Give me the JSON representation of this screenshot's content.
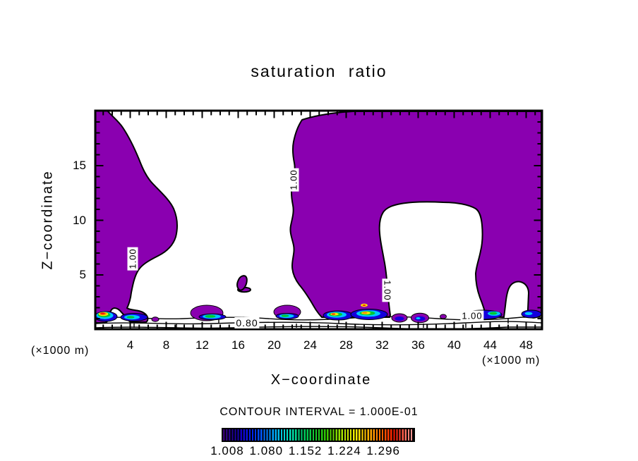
{
  "title": "saturation ratio",
  "axes": {
    "x": {
      "label": "X−coordinate",
      "units": "(×1000 m)",
      "ticks": [
        4,
        8,
        12,
        16,
        20,
        24,
        28,
        32,
        36,
        40,
        44,
        48
      ],
      "range": [
        0,
        50
      ]
    },
    "y": {
      "label": "Z−coordinate",
      "units": "(×1000 m)",
      "ticks": [
        5,
        10,
        15
      ],
      "range": [
        0,
        20
      ]
    }
  },
  "legend": {
    "contour_interval_text": "CONTOUR INTERVAL = 1.000E-01"
  },
  "colorbar": {
    "tick_labels": [
      "1.008",
      "1.080",
      "1.152",
      "1.224",
      "1.296"
    ],
    "n_stripes": 66,
    "gradient_stops": [
      [
        "#3A0070",
        0
      ],
      [
        "#22008C",
        4
      ],
      [
        "#1000C8",
        10
      ],
      [
        "#0028FF",
        16
      ],
      [
        "#00A0FF",
        26
      ],
      [
        "#00E0C8",
        34
      ],
      [
        "#00C850",
        44
      ],
      [
        "#30C800",
        54
      ],
      [
        "#A0E000",
        62
      ],
      [
        "#FFF000",
        70
      ],
      [
        "#FFA000",
        78
      ],
      [
        "#FF5000",
        85
      ],
      [
        "#FF1400",
        90
      ],
      [
        "#FF6450",
        95
      ],
      [
        "#FFA0A0",
        100
      ]
    ]
  },
  "contour_labels": {
    "left_vertical": "1.00",
    "top_vertical": "1.00",
    "mid_vertical": "1.00",
    "bottom_horizontal": "0.80",
    "right_horizontal": "1.00"
  },
  "colors": {
    "purple": "#8A00B0",
    "blue": "#1400DC",
    "cyan": "#00C8FF",
    "green": "#00C832",
    "yellow": "#FFE800",
    "orange": "#FF8C00",
    "red": "#FF1E00",
    "frame": "#000000"
  },
  "chart_data": {
    "type": "heatmap",
    "subtype": "filled-contour-plot",
    "title": "saturation ratio",
    "xlabel": "X−coordinate",
    "ylabel": "Z−coordinate",
    "x_units": "(×1000 m)",
    "y_units": "(×1000 m)",
    "xlim": [
      0,
      50
    ],
    "ylim": [
      0,
      20
    ],
    "xticks": [
      4,
      8,
      12,
      16,
      20,
      24,
      28,
      32,
      36,
      40,
      44,
      48
    ],
    "yticks": [
      5,
      10,
      15
    ],
    "contour_interval": 0.1,
    "contour_interval_label": "CONTOUR INTERVAL = 1.000E-01",
    "labeled_contour_values": [
      0.8,
      1.0
    ],
    "colorbar_tick_values": [
      1.008,
      1.08,
      1.152,
      1.224,
      1.296
    ],
    "fill_threshold": 1.0,
    "fill_color": "#8A00B0",
    "regions": [
      {
        "name": "left saturated plume",
        "x_extent": [
          0,
          9
        ],
        "z_extent": [
          0,
          20
        ],
        "value": ">=1.0"
      },
      {
        "name": "main saturated mass",
        "x_extent": [
          22,
          50
        ],
        "z_extent": [
          0,
          20
        ],
        "value": ">=1.0",
        "note": "contains unsaturated arch-shaped hole near x=31-43, z=0-11"
      },
      {
        "name": "near-surface hot spots",
        "x_extent": [
          0,
          50
        ],
        "z_extent": [
          0,
          2
        ],
        "value": "up to ~1.3 (cyan/green/yellow/red cores)"
      },
      {
        "name": "sub-saturated surface layer",
        "x_extent": [
          0,
          50
        ],
        "z_extent": [
          0,
          1
        ],
        "value": "~0.8 contour lines"
      }
    ]
  }
}
